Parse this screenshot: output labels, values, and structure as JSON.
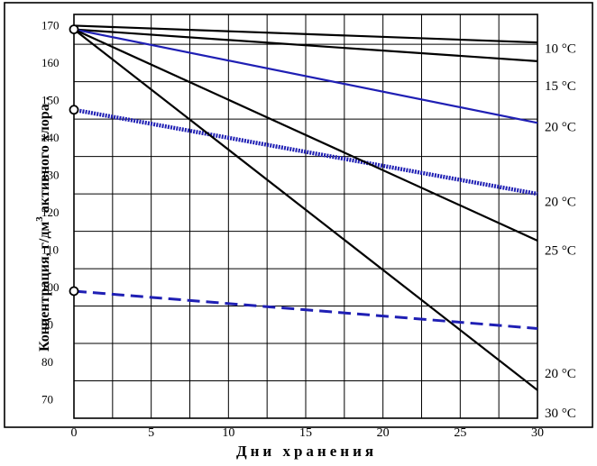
{
  "chart_data": {
    "type": "line",
    "xlabel": "Дни хранения",
    "ylabel": "Концентрация, г/дм3 активного хлора.",
    "ylabel_parts": {
      "before": "Концентрация, г/дм",
      "superscript": "3",
      "after": " активного хлора ."
    },
    "xlim": [
      0,
      30
    ],
    "ylim": [
      65,
      173
    ],
    "x_ticks": [
      0,
      5,
      10,
      15,
      20,
      25,
      30
    ],
    "y_ticks": [
      70,
      80,
      90,
      100,
      110,
      120,
      130,
      140,
      150,
      160,
      170
    ],
    "grid": true,
    "series": [
      {
        "x": [
          0,
          30
        ],
        "y": [
          170,
          165.5
        ],
        "color": "#000000",
        "style": "solid",
        "label_text": "10 °C"
      },
      {
        "x": [
          0,
          30
        ],
        "y": [
          169,
          160.5
        ],
        "color": "#000000",
        "style": "solid"
      },
      {
        "x": [
          0,
          30
        ],
        "y": [
          169,
          144
        ],
        "color": "#1f1fb4",
        "style": "solid",
        "label_text": "15 °C"
      },
      {
        "x": [
          0,
          30
        ],
        "y": [
          147.5,
          125
        ],
        "color": "#1f1fb4",
        "style": "dotted-thick",
        "label_text": "20 °C"
      },
      {
        "x": [
          0,
          30
        ],
        "y": [
          169,
          112.5
        ],
        "color": "#000000",
        "style": "solid",
        "label_text": "20 °C"
      },
      {
        "x": [
          0,
          30
        ],
        "y": [
          169,
          72.5
        ],
        "color": "#000000",
        "style": "solid",
        "label_text": "25 °C"
      },
      {
        "x": [
          0,
          30
        ],
        "y": [
          99,
          89
        ],
        "color": "#1f1fb4",
        "style": "dashed",
        "label_text": "20 °C"
      }
    ],
    "markers": [
      {
        "x": 0,
        "y": 169
      },
      {
        "x": 0,
        "y": 147.5
      },
      {
        "x": 0,
        "y": 99
      }
    ],
    "right_labels": [
      {
        "text": "10 °C",
        "y": 164
      },
      {
        "text": "15 °C",
        "y": 154
      },
      {
        "text": "20 °C",
        "y": 143
      },
      {
        "text": "20 °C",
        "y": 123
      },
      {
        "text": "25 °C",
        "y": 110
      },
      {
        "text": "20 °C",
        "y": 77
      },
      {
        "text": "30 °C",
        "y": 66.5
      }
    ]
  }
}
